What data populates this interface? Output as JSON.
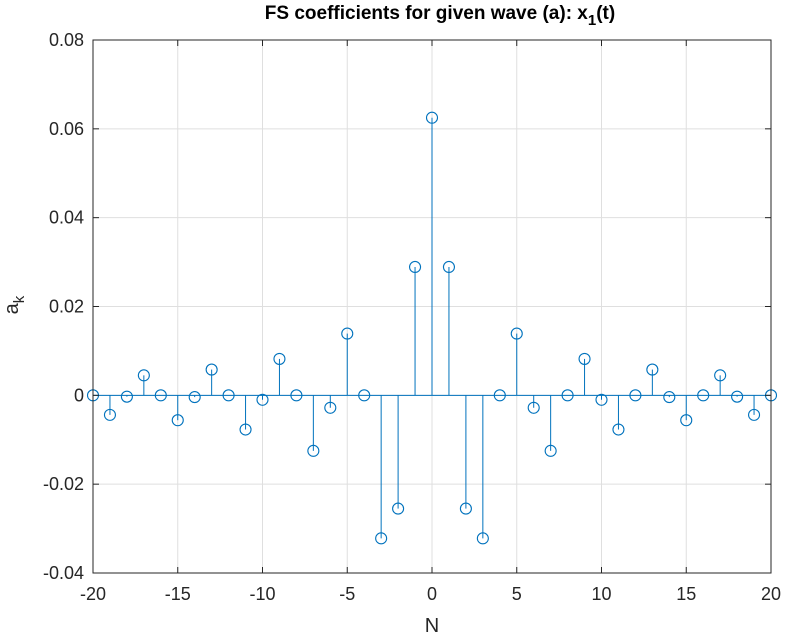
{
  "chart_data": {
    "type": "stem",
    "title_main": "FS coefficients for given wave (a): x",
    "title_sub": "1",
    "title_tail": "(t)",
    "xlabel": "N",
    "ylabel_main": "a",
    "ylabel_sub": "k",
    "xlim": [
      -20,
      20
    ],
    "ylim": [
      -0.04,
      0.08
    ],
    "xticks": [
      -20,
      -15,
      -10,
      -5,
      0,
      5,
      10,
      15,
      20
    ],
    "xtick_labels": [
      "-20",
      "-15",
      "-10",
      "-5",
      "0",
      "5",
      "10",
      "15",
      "20"
    ],
    "yticks": [
      -0.04,
      -0.02,
      0,
      0.02,
      0.04,
      0.06,
      0.08
    ],
    "ytick_labels": [
      "-0.04",
      "-0.02",
      "0",
      "0.02",
      "0.04",
      "0.06",
      "0.08"
    ],
    "grid": true,
    "color": "#0072BD",
    "x": [
      -20,
      -19,
      -18,
      -17,
      -16,
      -15,
      -14,
      -13,
      -12,
      -11,
      -10,
      -9,
      -8,
      -7,
      -6,
      -5,
      -4,
      -3,
      -2,
      -1,
      0,
      1,
      2,
      3,
      4,
      5,
      6,
      7,
      8,
      9,
      10,
      11,
      12,
      13,
      14,
      15,
      16,
      17,
      18,
      19,
      20
    ],
    "y": [
      0,
      -0.0044,
      -0.0003,
      0.0045,
      0,
      -0.0056,
      -0.0004,
      0.0058,
      0,
      -0.0077,
      -0.001,
      0.0082,
      0,
      -0.0125,
      -0.0028,
      0.0139,
      0,
      -0.0322,
      -0.0255,
      0.0289,
      0.0625,
      0.0289,
      -0.0255,
      -0.0322,
      0,
      0.0139,
      -0.0028,
      -0.0125,
      0,
      0.0082,
      -0.001,
      -0.0077,
      0,
      0.0058,
      -0.0004,
      -0.0056,
      0,
      0.0045,
      -0.0003,
      -0.0044,
      0
    ]
  }
}
